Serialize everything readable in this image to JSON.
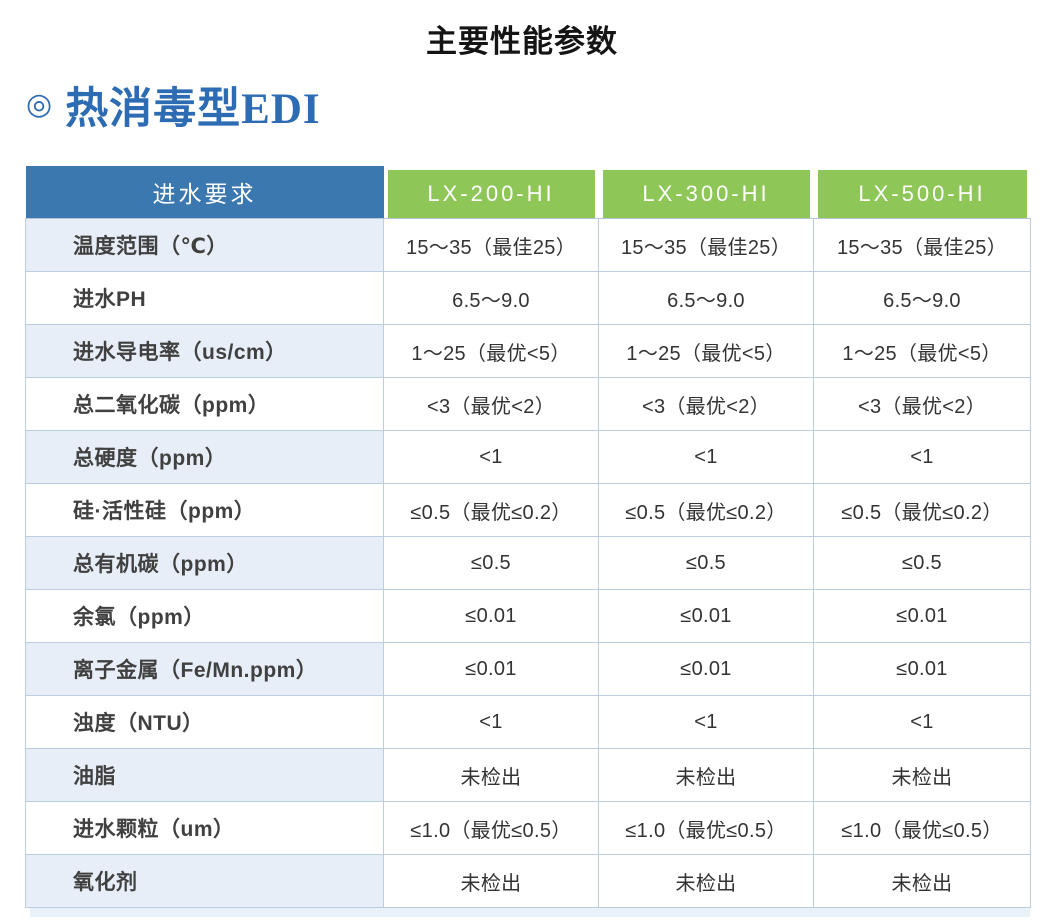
{
  "page": {
    "title": "主要性能参数",
    "section": {
      "bullet": "◎",
      "title": "热消毒型EDI"
    }
  },
  "colors": {
    "header_blue": "#3b78b0",
    "header_green": "#8ec758",
    "row_shade": "#e7eef7",
    "border": "#bccde0",
    "section_blue": "#2d6cb3"
  },
  "table": {
    "header": {
      "label": "进水要求",
      "products": [
        "LX-200-HI",
        "LX-300-HI",
        "LX-500-HI"
      ]
    },
    "rows": [
      {
        "label": "温度范围（℃）",
        "values": [
          "15～35（最佳25）",
          "15～35（最佳25）",
          "15～35（最佳25）"
        ]
      },
      {
        "label": "进水PH",
        "values": [
          "6.5～9.0",
          "6.5～9.0",
          "6.5～9.0"
        ]
      },
      {
        "label": "进水导电率（us/cm）",
        "values": [
          "1～25（最优<5）",
          "1～25（最优<5）",
          "1～25（最优<5）"
        ]
      },
      {
        "label": "总二氧化碳（ppm）",
        "values": [
          "<3（最优<2）",
          "<3（最优<2）",
          "<3（最优<2）"
        ]
      },
      {
        "label": "总硬度（ppm）",
        "values": [
          "<1",
          "<1",
          "<1"
        ]
      },
      {
        "label": "硅·活性硅（ppm）",
        "values": [
          "≤0.5（最优≤0.2）",
          "≤0.5（最优≤0.2）",
          "≤0.5（最优≤0.2）"
        ]
      },
      {
        "label": "总有机碳（ppm）",
        "values": [
          "≤0.5",
          "≤0.5",
          "≤0.5"
        ]
      },
      {
        "label": "余氯（ppm）",
        "values": [
          "≤0.01",
          "≤0.01",
          "≤0.01"
        ]
      },
      {
        "label": "离子金属（Fe/Mn.ppm）",
        "values": [
          "≤0.01",
          "≤0.01",
          "≤0.01"
        ]
      },
      {
        "label": "浊度（NTU）",
        "values": [
          "<1",
          "<1",
          "<1"
        ]
      },
      {
        "label": "油脂",
        "values": [
          "未检出",
          "未检出",
          "未检出"
        ]
      },
      {
        "label": "进水颗粒（um）",
        "values": [
          "≤1.0（最优≤0.5）",
          "≤1.0（最优≤0.5）",
          "≤1.0（最优≤0.5）"
        ]
      },
      {
        "label": "氧化剂",
        "values": [
          "未检出",
          "未检出",
          "未检出"
        ]
      }
    ]
  }
}
